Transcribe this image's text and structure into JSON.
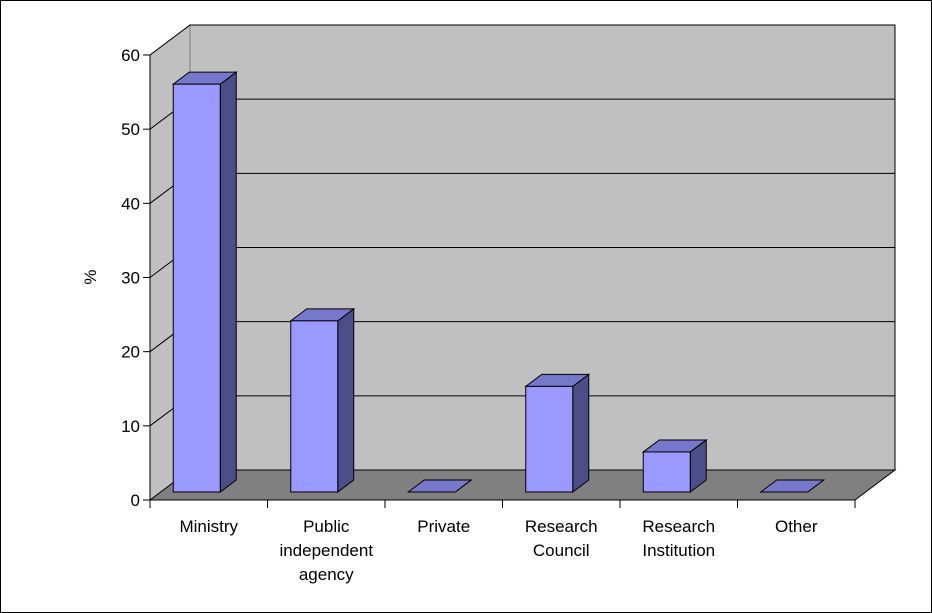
{
  "chart_data": {
    "type": "bar",
    "style": "3d-column",
    "categories": [
      [
        "Ministry"
      ],
      [
        "Public",
        "independent",
        "agency"
      ],
      [
        "Private"
      ],
      [
        "Research",
        "Council"
      ],
      [
        "Research",
        "Institution"
      ],
      [
        "Other"
      ]
    ],
    "values": [
      56,
      23.5,
      0,
      14.5,
      5.5,
      0
    ],
    "ylabel": "%",
    "ylim": [
      0,
      60
    ],
    "yticks": [
      "0",
      "10",
      "20",
      "30",
      "40",
      "50",
      "60"
    ],
    "grid": true,
    "legend": "none",
    "colors": {
      "bar_front": "#9999ff",
      "bar_side": "#4d4d8a",
      "bar_top": "#7777cc",
      "wall": "#c0c0c0",
      "floor": "#808080"
    }
  }
}
